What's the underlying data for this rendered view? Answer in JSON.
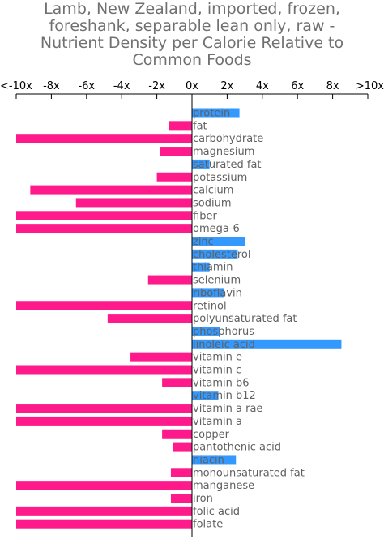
{
  "chart_data": {
    "type": "bar",
    "orientation": "horizontal",
    "title_lines": [
      "Lamb, New Zealand, imported, frozen,",
      "foreshank, separable lean only, raw -",
      "Nutrient Density per Calorie Relative to",
      "Common Foods"
    ],
    "xlabel": "",
    "ylabel": "",
    "xlim": [
      -10,
      10
    ],
    "x_ticks": [
      {
        "value": -10,
        "label": "<-10x"
      },
      {
        "value": -8,
        "label": "-8x"
      },
      {
        "value": -6,
        "label": "-6x"
      },
      {
        "value": -4,
        "label": "-4x"
      },
      {
        "value": -2,
        "label": "-2x"
      },
      {
        "value": 0,
        "label": "0x"
      },
      {
        "value": 2,
        "label": "2x"
      },
      {
        "value": 4,
        "label": "4x"
      },
      {
        "value": 6,
        "label": "6x"
      },
      {
        "value": 8,
        "label": "8x"
      },
      {
        "value": 10,
        "label": ">10x"
      }
    ],
    "colors": {
      "positive": "#3399ff",
      "negative": "#ff1a8c"
    },
    "categories": [
      "protein",
      "fat",
      "carbohydrate",
      "magnesium",
      "saturated fat",
      "potassium",
      "calcium",
      "sodium",
      "fiber",
      "omega-6",
      "zinc",
      "cholesterol",
      "thiamin",
      "selenium",
      "riboflavin",
      "retinol",
      "polyunsaturated fat",
      "phosphorus",
      "linoleic acid",
      "vitamin e",
      "vitamin c",
      "vitamin b6",
      "vitamin b12",
      "vitamin a rae",
      "vitamin a",
      "copper",
      "pantothenic acid",
      "niacin",
      "monounsaturated fat",
      "manganese",
      "iron",
      "folic acid",
      "folate"
    ],
    "values": [
      2.7,
      -1.3,
      -10,
      -1.8,
      1.0,
      -2.0,
      -9.2,
      -6.6,
      -10,
      -10,
      3.0,
      2.6,
      1.0,
      -2.5,
      1.8,
      -10,
      -4.8,
      1.6,
      8.5,
      -3.5,
      -10,
      -1.7,
      1.5,
      -10,
      -10,
      -1.7,
      -1.1,
      2.5,
      -1.2,
      -10,
      -1.2,
      -10,
      -10
    ]
  }
}
